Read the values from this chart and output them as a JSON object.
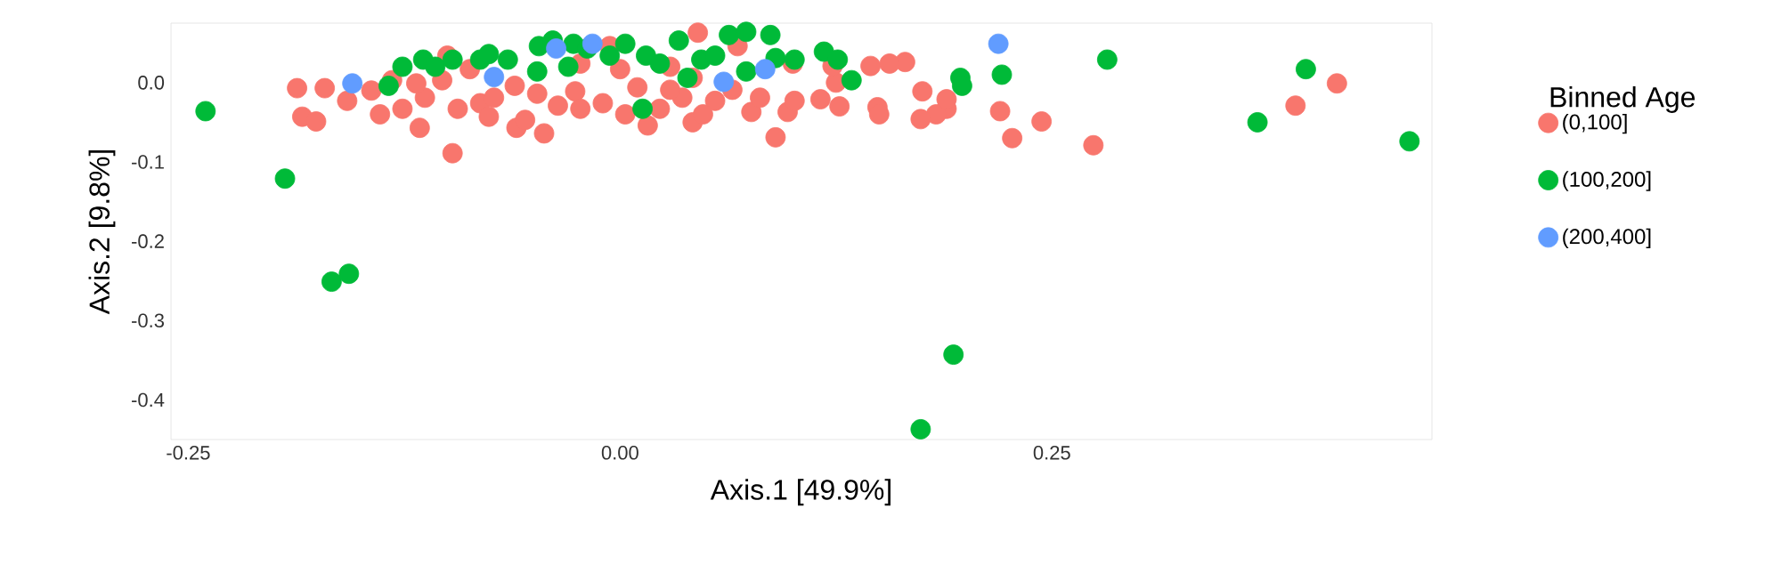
{
  "chart_data": {
    "type": "scatter",
    "xlabel": "Axis.1   [49.9%]",
    "ylabel": "Axis.2   [9.8%]",
    "legend_title": "Binned Age",
    "legend": "right",
    "marker": "circle",
    "grid": false,
    "xlim": [
      -0.26,
      0.47
    ],
    "ylim": [
      -0.45,
      0.075
    ],
    "xticks": [
      {
        "value": -0.25,
        "label": "-0.25"
      },
      {
        "value": 0,
        "label": "0.00"
      },
      {
        "value": 0.25,
        "label": "0.25"
      }
    ],
    "yticks": [
      {
        "value": -0.4,
        "label": "-0.4"
      },
      {
        "value": -0.3,
        "label": "-0.3"
      },
      {
        "value": -0.2,
        "label": "-0.2"
      },
      {
        "value": -0.1,
        "label": "-0.1"
      },
      {
        "value": 0,
        "label": "0.0"
      }
    ],
    "series": [
      {
        "name": "(0,100]",
        "color": "#f8766d",
        "x": [
          0.415,
          0.391,
          0.274,
          0.244,
          0.227,
          0.22,
          0.189,
          0.183,
          0.174,
          0.189,
          0.175,
          0.165,
          0.156,
          0.145,
          0.149,
          0.15,
          0.127,
          0.116,
          0.125,
          0.123,
          0.097,
          0.09,
          0.101,
          -0.187,
          -0.184,
          -0.176,
          -0.171,
          -0.158,
          -0.144,
          -0.139,
          -0.126,
          -0.113,
          -0.116,
          -0.097,
          -0.1,
          -0.094,
          -0.081,
          -0.076,
          -0.061,
          -0.06,
          -0.055,
          -0.044,
          -0.048,
          -0.036,
          -0.026,
          -0.023,
          -0.01,
          0.0,
          -0.006,
          0.01,
          0.016,
          0.023,
          0.029,
          0.036,
          0.042,
          0.045,
          0.055,
          0.048,
          0.065,
          0.068,
          0.076,
          0.081,
          -0.132,
          -0.087,
          -0.073,
          -0.118,
          -0.103,
          -0.023,
          0.003,
          0.029,
          0.042,
          0.1
        ],
        "values": [
          -0.001,
          -0.029,
          -0.079,
          -0.049,
          -0.07,
          -0.036,
          -0.033,
          -0.04,
          -0.046,
          -0.021,
          -0.011,
          0.026,
          0.024,
          0.021,
          -0.031,
          -0.04,
          -0.03,
          -0.021,
          0.0,
          0.021,
          -0.037,
          -0.069,
          -0.023,
          -0.007,
          -0.043,
          -0.049,
          -0.007,
          -0.023,
          -0.01,
          -0.04,
          -0.033,
          -0.019,
          -0.057,
          -0.089,
          0.034,
          -0.033,
          -0.026,
          -0.043,
          -0.004,
          -0.057,
          -0.047,
          -0.064,
          -0.014,
          -0.029,
          -0.011,
          0.024,
          -0.026,
          0.017,
          0.046,
          -0.006,
          -0.054,
          -0.033,
          0.02,
          -0.019,
          -0.05,
          0.063,
          -0.023,
          -0.04,
          -0.009,
          0.046,
          -0.037,
          -0.019,
          0.003,
          0.017,
          -0.019,
          -0.001,
          0.003,
          -0.033,
          -0.04,
          -0.009,
          0.006,
          0.024
        ]
      },
      {
        "name": "(100,200]",
        "color": "#00ba38",
        "x": [
          -0.24,
          -0.194,
          -0.167,
          -0.157,
          0.174,
          0.193,
          0.282,
          0.369,
          0.397,
          0.457,
          0.197,
          0.198,
          0.221,
          -0.134,
          -0.126,
          -0.114,
          -0.107,
          -0.097,
          -0.081,
          -0.076,
          -0.065,
          -0.047,
          -0.039,
          -0.027,
          -0.019,
          -0.006,
          0.003,
          0.015,
          0.023,
          0.013,
          0.034,
          0.047,
          0.055,
          0.063,
          0.073,
          0.087,
          0.09,
          0.101,
          0.118,
          0.126,
          0.134,
          0.073,
          0.039,
          -0.048,
          -0.03
        ],
        "values": [
          -0.036,
          -0.121,
          -0.251,
          -0.241,
          -0.437,
          -0.343,
          0.029,
          -0.05,
          0.017,
          -0.074,
          0.006,
          -0.004,
          0.01,
          -0.004,
          0.02,
          0.029,
          0.02,
          0.029,
          0.029,
          0.036,
          0.029,
          0.046,
          0.053,
          0.049,
          0.043,
          0.034,
          0.049,
          0.034,
          0.024,
          -0.033,
          0.053,
          0.029,
          0.034,
          0.06,
          0.064,
          0.06,
          0.031,
          0.029,
          0.039,
          0.029,
          0.003,
          0.014,
          0.006,
          0.014,
          0.02
        ]
      },
      {
        "name": "(200,400]",
        "color": "#619cff",
        "x": [
          0.219,
          -0.155,
          -0.073,
          -0.037,
          -0.016,
          0.084,
          0.06
        ],
        "values": [
          0.049,
          -0.001,
          0.007,
          0.043,
          0.049,
          0.017,
          0.001
        ]
      }
    ]
  }
}
